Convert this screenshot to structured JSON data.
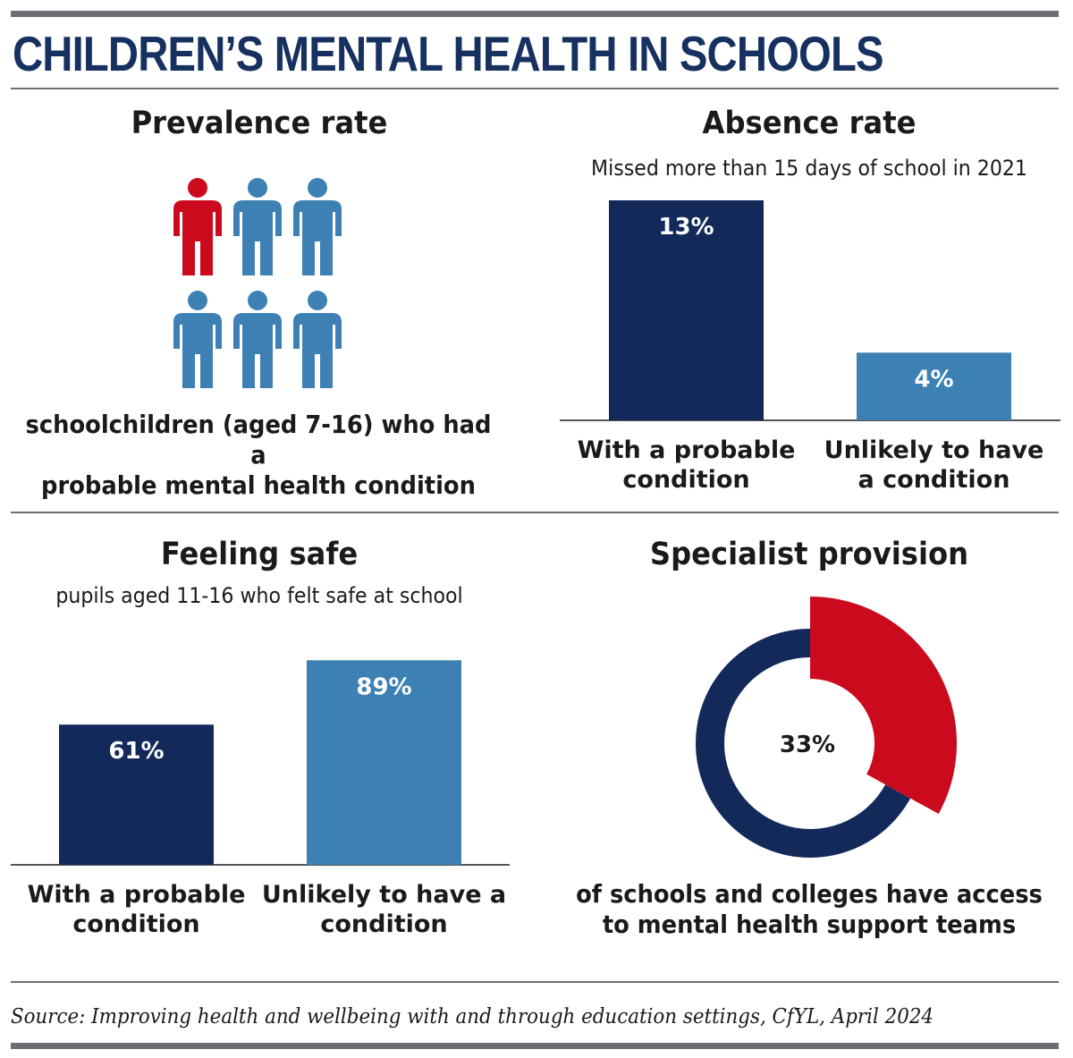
{
  "title": "CHILDREN’S MENTAL HEALTH IN SCHOOLS",
  "colors": {
    "navy": "#12295a",
    "blue": "#3d80b4",
    "red": "#cc0a1e",
    "rule": "#6b6f73",
    "title": "#16305f"
  },
  "prevalence": {
    "title": "Prevalence rate",
    "caption_line1": "schoolchildren (aged 7-16) who had a",
    "caption_line2": "probable mental health condition",
    "icon_name": "person-icon",
    "highlighted_fraction": "1 in 6"
  },
  "source": "Source: Improving health and wellbeing with and through education settings, CfYL, April 2024",
  "chart_data": [
    {
      "type": "bar",
      "title": "Absence rate",
      "subtitle": "Missed more than 15 days of school in 2021",
      "categories": [
        [
          "With a probable",
          "condition"
        ],
        [
          "Unlikely to have",
          "a condition"
        ]
      ],
      "values": [
        13,
        4
      ],
      "labels": [
        "13%",
        "4%"
      ],
      "colors": [
        "#12295a",
        "#3d80b4"
      ],
      "ylim": [
        0,
        13
      ]
    },
    {
      "type": "bar",
      "title": "Feeling safe",
      "subtitle": "pupils aged 11-16 who felt safe at school",
      "categories": [
        [
          "With a probable",
          "condition"
        ],
        [
          "Unlikely to have a",
          "condition"
        ]
      ],
      "values": [
        61,
        89
      ],
      "labels": [
        "61%",
        "89%"
      ],
      "colors": [
        "#12295a",
        "#3d80b4"
      ],
      "ylim": [
        0,
        100
      ]
    },
    {
      "type": "pie",
      "title": "Specialist provision",
      "center_label": "33%",
      "values": [
        33,
        67
      ],
      "colors": [
        "#cc0a1e",
        "#12295a"
      ],
      "caption_line1": "of schools and colleges have access",
      "caption_line2": "to mental health support teams"
    }
  ]
}
